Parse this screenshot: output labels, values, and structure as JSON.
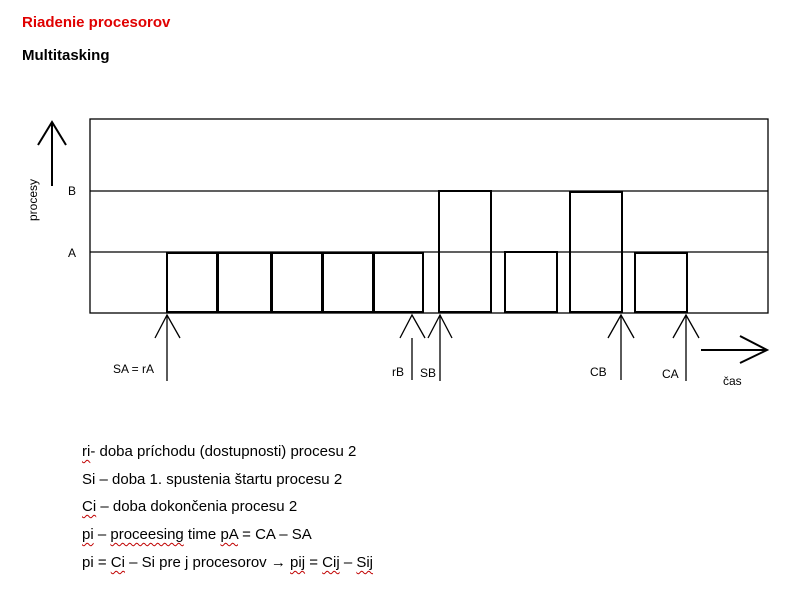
{
  "page": {
    "title": "Riadenie procesorov",
    "title_color": "#e00000",
    "subtitle": "Multitasking"
  },
  "diagram": {
    "y_axis_label": "procesy",
    "row_labels": [
      "B",
      "A"
    ],
    "time_label": "čas",
    "markers": [
      {
        "id": "sa-ra",
        "label": "SA = rA"
      },
      {
        "id": "rb",
        "label": "rB"
      },
      {
        "id": "sb",
        "label": "SB"
      },
      {
        "id": "cb",
        "label": "CB"
      },
      {
        "id": "ca",
        "label": "CA"
      }
    ]
  },
  "definitions": {
    "line1": {
      "a": "ri",
      "b": "- doba príchodu (dostupnosti) procesu 2"
    },
    "line2": {
      "a": "Si – doba 1. spustenia štartu procesu 2"
    },
    "line3": {
      "a": "Ci",
      "b": " – doba dokončenia procesu 2"
    },
    "line4": {
      "a": "pi",
      "b": " – ",
      "c": "proceesing",
      "d": " time ",
      "e": "pA",
      "f": " = CA – SA"
    },
    "line5": {
      "a": "pi = ",
      "b": "Ci",
      "c": " – Si pre j procesorov → ",
      "d": "pij",
      "e": " = ",
      "f": "Cij",
      "g": " – ",
      "h": "Sij"
    }
  }
}
